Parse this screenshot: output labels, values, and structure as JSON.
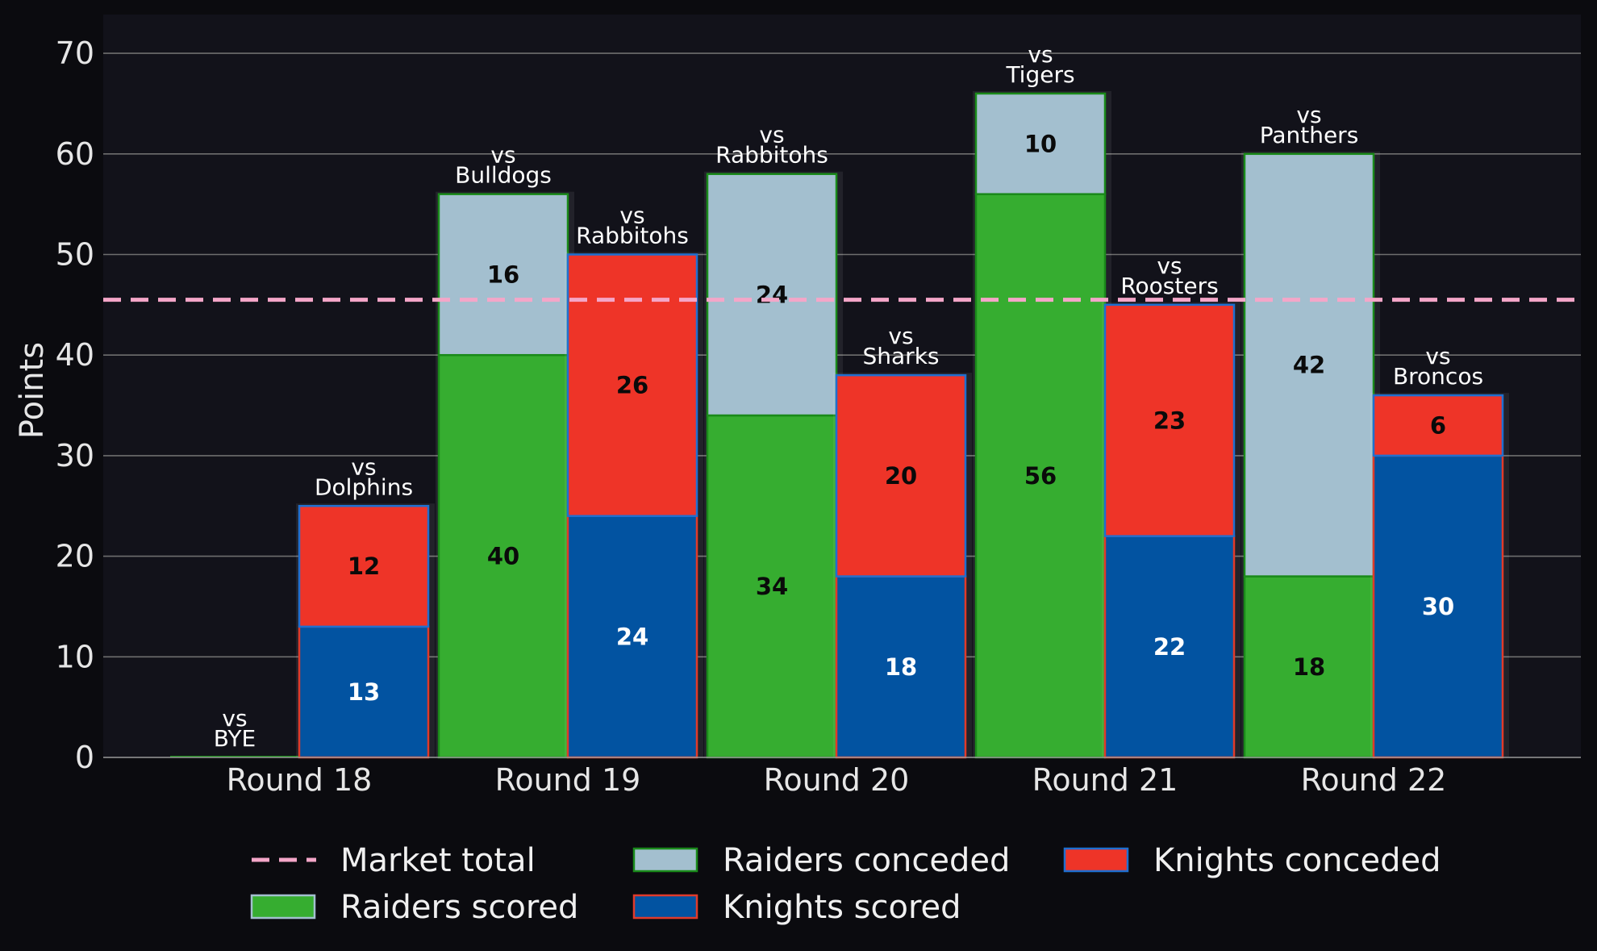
{
  "chart_data": {
    "type": "bar",
    "subtype": "grouped-stacked",
    "ylabel": "Points",
    "ylim": [
      0,
      74
    ],
    "yticks": [
      0,
      10,
      20,
      30,
      40,
      50,
      60,
      70
    ],
    "grid": "horizontal",
    "legend_position": "bottom",
    "categories": [
      "Round 18",
      "Round 19",
      "Round 20",
      "Round 21",
      "Round 22"
    ],
    "market_total": 45.5,
    "raiders": {
      "opponents": [
        "vs\nBYE",
        "vs\nBulldogs",
        "vs\nRabbitohs",
        "vs\nTigers",
        "vs\nPanthers"
      ],
      "scored": [
        0,
        40,
        34,
        56,
        18
      ],
      "conceded": [
        0,
        16,
        24,
        10,
        42
      ]
    },
    "knights": {
      "opponents": [
        "vs\nDolphins",
        "vs\nRabbitohs",
        "vs\nSharks",
        "vs\nRoosters",
        "vs\nBroncos"
      ],
      "scored": [
        13,
        24,
        18,
        22,
        30
      ],
      "conceded": [
        12,
        26,
        20,
        23,
        6
      ]
    },
    "series": [
      {
        "name": "Market total",
        "style": "dashed-line",
        "color": "#f4a6c8"
      },
      {
        "name": "Raiders scored",
        "color": "#36ad30"
      },
      {
        "name": "Raiders conceded",
        "color": "#a3bfcf"
      },
      {
        "name": "Knights scored",
        "color": "#0253a1"
      },
      {
        "name": "Knights conceded",
        "color": "#ee3428"
      }
    ]
  },
  "colors": {
    "figure_bg": "#0b0b0f",
    "plot_bg": "#12121a",
    "grid": "#6e6e6e",
    "raiders_scored": "#36ad30",
    "raiders_conceded": "#a3bfcf",
    "raiders_edge": "#1a8a1a",
    "knights_scored": "#0253a1",
    "knights_conceded": "#ee3428",
    "knights_scored_edge": "#e03a2a",
    "knights_conceded_edge": "#1f6fd0",
    "market_line": "#f4a6c8"
  }
}
